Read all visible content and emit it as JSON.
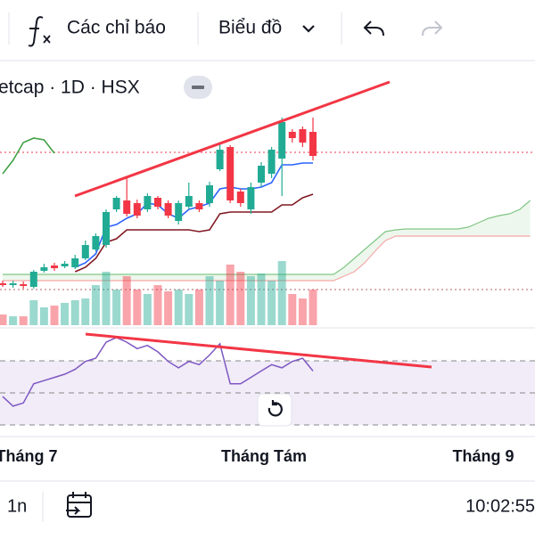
{
  "toolbar": {
    "indicators": "Các chỉ báo",
    "chart": "Biểu đồ"
  },
  "symbol_title": "etcap · 1D · HSX",
  "chart_data": {
    "type": "candlestick",
    "ylim": [
      0,
      300
    ],
    "up_color": "#22ab94",
    "down_color": "#f23645",
    "open": [
      52,
      50,
      51,
      48,
      66,
      72,
      71,
      70,
      80,
      90,
      95,
      135,
      145,
      142,
      135,
      148,
      142,
      122,
      138,
      142,
      142,
      180,
      205,
      155,
      135,
      165,
      175,
      192,
      222,
      225,
      222
    ],
    "close": [
      50,
      52,
      49,
      65,
      70,
      69,
      74,
      80,
      95,
      105,
      132,
      148,
      130,
      128,
      150,
      138,
      128,
      142,
      150,
      135,
      162,
      202,
      145,
      142,
      160,
      184,
      202,
      233,
      215,
      210,
      195
    ],
    "high": [
      55,
      55,
      54,
      67,
      74,
      75,
      77,
      84,
      100,
      108,
      135,
      150,
      170,
      146,
      153,
      150,
      145,
      145,
      165,
      145,
      166,
      210,
      207,
      158,
      165,
      188,
      205,
      238,
      225,
      228,
      238
    ],
    "low": [
      48,
      47,
      46,
      46,
      64,
      66,
      69,
      68,
      78,
      88,
      92,
      132,
      127,
      125,
      132,
      135,
      125,
      118,
      135,
      132,
      138,
      178,
      142,
      138,
      130,
      160,
      170,
      150,
      210,
      205,
      190
    ],
    "volume": {
      "ylim": [
        0,
        100
      ],
      "values": [
        12,
        10,
        10,
        28,
        20,
        22,
        25,
        28,
        30,
        45,
        60,
        40,
        55,
        40,
        35,
        45,
        38,
        40,
        35,
        40,
        55,
        50,
        68,
        60,
        55,
        58,
        50,
        72,
        35,
        30,
        40
      ]
    },
    "lines": [
      {
        "color": "#2962ff",
        "values": [
          null,
          null,
          null,
          null,
          null,
          null,
          null,
          70,
          75,
          85,
          115,
          118,
          125,
          130,
          142,
          140,
          130,
          125,
          135,
          138,
          142,
          158,
          160,
          158,
          158,
          160,
          165,
          185,
          185,
          187,
          187
        ]
      },
      {
        "color": "#801922",
        "values": [
          null,
          null,
          null,
          null,
          null,
          null,
          null,
          65,
          70,
          80,
          98,
          102,
          112,
          112,
          112,
          112,
          112,
          112,
          112,
          110,
          112,
          130,
          132,
          132,
          132,
          132,
          132,
          140,
          140,
          148,
          152
        ]
      },
      {
        "color": "#43a047",
        "values": [
          175,
          190,
          210,
          215,
          213,
          198
        ]
      }
    ],
    "cloud": {
      "span_a": {
        "color": "#81c784",
        "values": [
          62,
          62,
          62,
          62,
          62,
          62,
          62,
          62,
          62,
          62,
          62,
          62,
          62,
          62,
          62,
          62,
          62,
          62,
          62,
          62,
          62,
          62,
          62,
          62,
          62,
          62,
          62,
          62,
          62,
          62,
          62,
          62,
          62,
          70,
          80,
          90,
          100,
          110,
          112,
          113,
          113,
          113,
          113,
          113,
          113,
          115,
          120,
          125,
          128,
          130,
          135,
          145
        ]
      },
      "span_b": {
        "color": "#f7a8a8",
        "values": [
          55,
          55,
          55,
          55,
          55,
          55,
          55,
          55,
          55,
          55,
          55,
          55,
          55,
          55,
          55,
          55,
          55,
          55,
          55,
          55,
          55,
          55,
          55,
          55,
          55,
          55,
          55,
          55,
          55,
          55,
          55,
          55,
          55,
          60,
          65,
          75,
          88,
          100,
          105,
          105,
          105,
          105,
          105,
          105,
          105,
          105,
          105,
          105,
          105,
          105,
          105,
          105
        ]
      }
    },
    "rsi": {
      "ylim": [
        23,
        91
      ],
      "color": "#7e57c2",
      "values": [
        48,
        42,
        44,
        56,
        58,
        60,
        62,
        65,
        70,
        72,
        82,
        85,
        82,
        78,
        80,
        76,
        70,
        66,
        70,
        68,
        74,
        81,
        56,
        56,
        60,
        64,
        68,
        66,
        70,
        72,
        64
      ]
    },
    "x_labels": [
      "Tháng 7",
      "Tháng Tám",
      "Tháng 9"
    ]
  },
  "bottom_bar": {
    "range": "1n",
    "time": "10:02:55"
  }
}
